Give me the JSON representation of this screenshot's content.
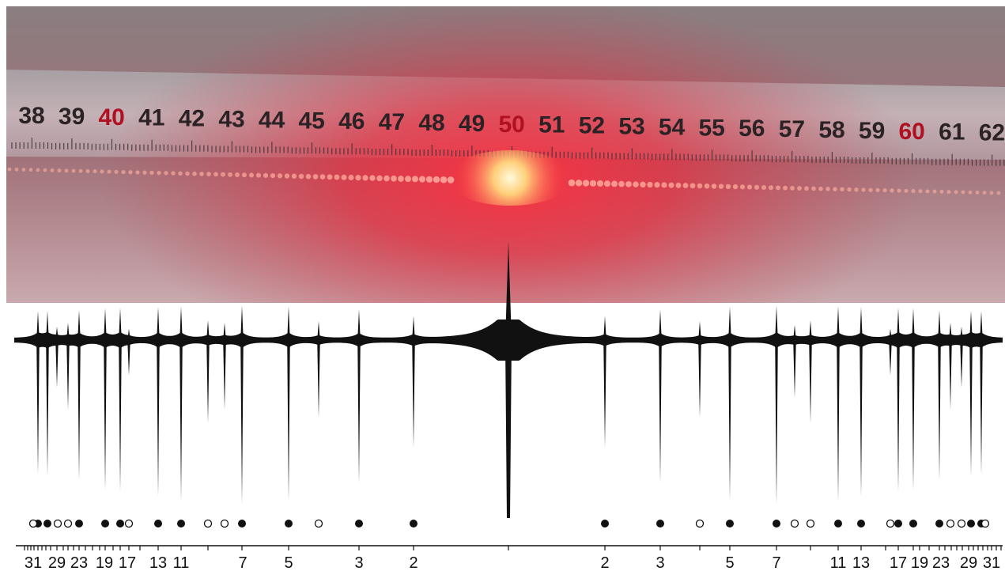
{
  "ruler": {
    "labels": [
      "38",
      "39",
      "40",
      "41",
      "42",
      "43",
      "44",
      "45",
      "46",
      "47",
      "48",
      "49",
      "50",
      "51",
      "52",
      "53",
      "54",
      "55",
      "56",
      "57",
      "58",
      "59",
      "60",
      "61",
      "62"
    ]
  },
  "axis": {
    "left_labels": [
      "31",
      "29",
      "23",
      "19",
      "17",
      "13",
      "11",
      "7",
      "5",
      "3",
      "2"
    ],
    "right_labels": [
      "2",
      "3",
      "5",
      "7",
      "11",
      "13",
      "17",
      "19",
      "23",
      "29",
      "31"
    ]
  }
}
